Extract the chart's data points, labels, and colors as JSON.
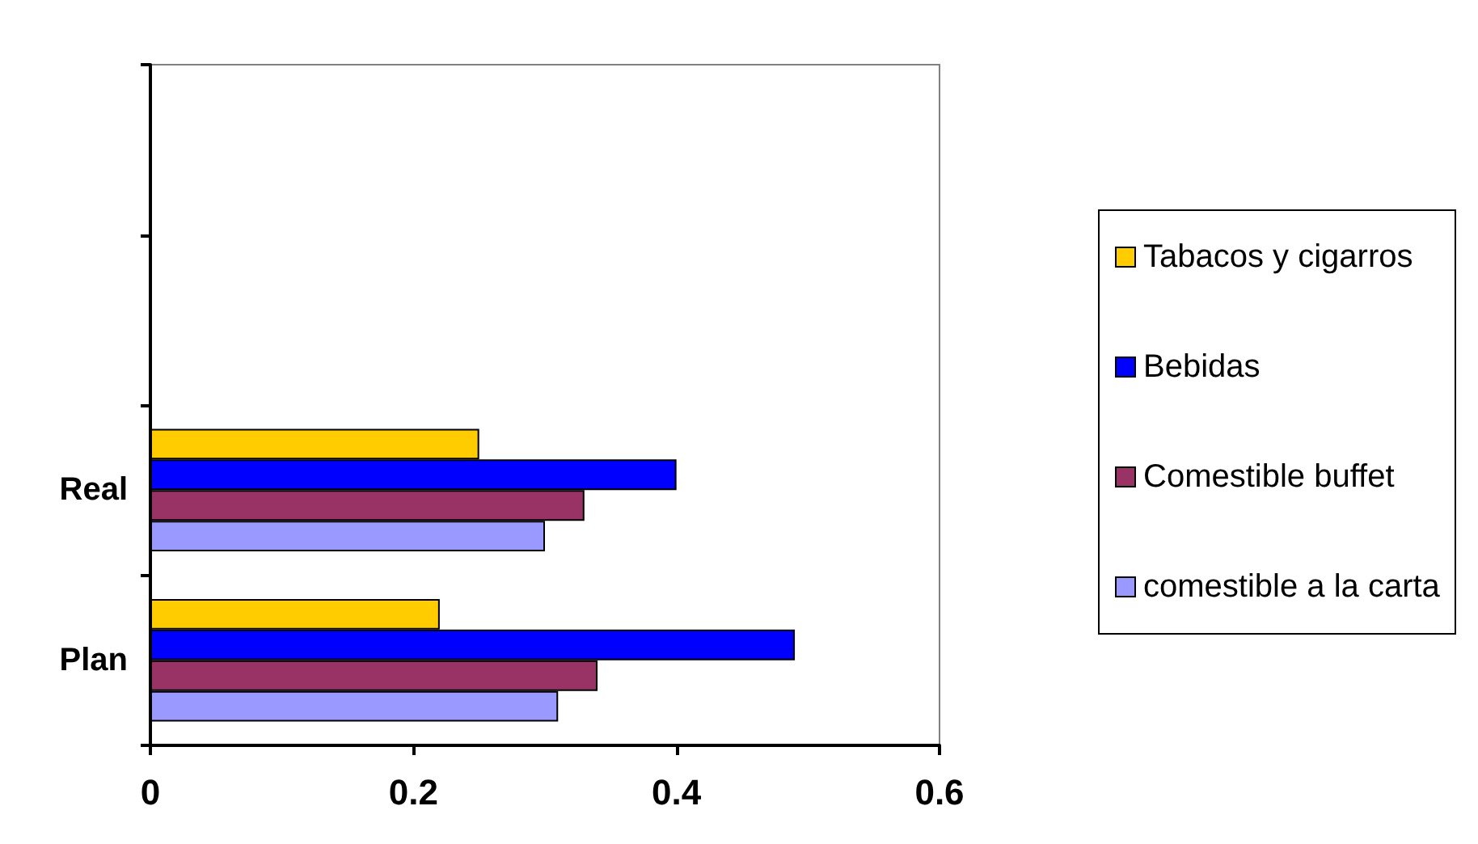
{
  "chart_data": {
    "type": "bar",
    "orientation": "horizontal",
    "categories": [
      null,
      null,
      "Real",
      "Plan"
    ],
    "series": [
      {
        "name": "Tabacos y cigarros",
        "color": "#ffcc00",
        "values": [
          null,
          null,
          0.25,
          0.22
        ]
      },
      {
        "name": "Bebidas",
        "color": "#0000ff",
        "values": [
          null,
          null,
          0.4,
          0.49
        ]
      },
      {
        "name": "Comestible buffet",
        "color": "#993366",
        "values": [
          null,
          null,
          0.33,
          0.34
        ]
      },
      {
        "name": "comestible a la carta",
        "color": "#9999ff",
        "values": [
          null,
          null,
          0.3,
          0.31
        ]
      }
    ],
    "xlim": [
      0,
      0.6
    ],
    "xticks": [
      0,
      0.2,
      0.4,
      0.6
    ],
    "grid": false,
    "legend": "right"
  }
}
